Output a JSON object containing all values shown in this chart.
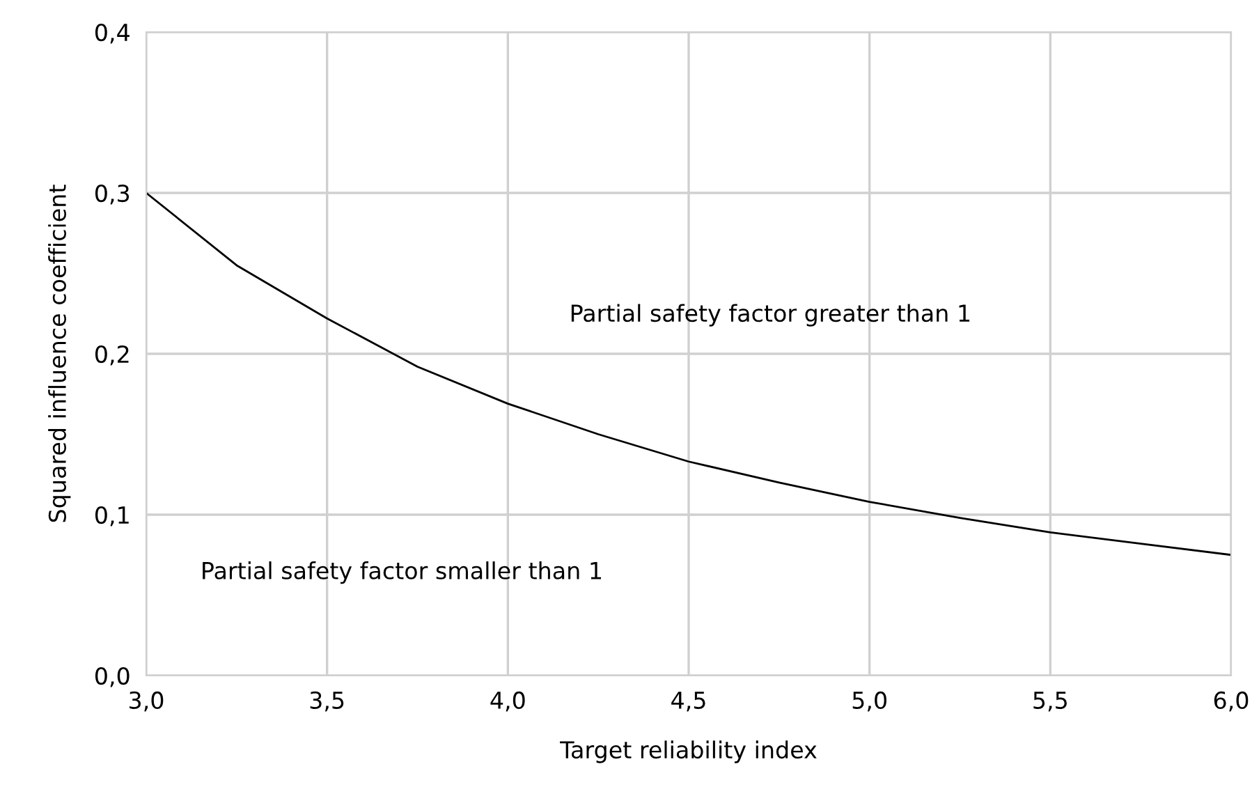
{
  "chart_data": {
    "type": "line",
    "xlabel": "Target reliability index",
    "ylabel": "Squared influence coefficient",
    "x": [
      3.0,
      3.25,
      3.5,
      3.75,
      4.0,
      4.25,
      4.5,
      4.75,
      5.0,
      5.25,
      5.5,
      5.75,
      6.0
    ],
    "series": [
      {
        "color": "#000000",
        "values": [
          0.3,
          0.255,
          0.222,
          0.192,
          0.169,
          0.15,
          0.133,
          0.12,
          0.108,
          0.098,
          0.089,
          0.082,
          0.075
        ]
      }
    ],
    "xlim": [
      3.0,
      6.0
    ],
    "xticks": [
      {
        "value": 3.0,
        "label": "3,0"
      },
      {
        "value": 3.5,
        "label": "3,5"
      },
      {
        "value": 4.0,
        "label": "4,0"
      },
      {
        "value": 4.5,
        "label": "4,5"
      },
      {
        "value": 5.0,
        "label": "5,0"
      },
      {
        "value": 5.5,
        "label": "5,5"
      },
      {
        "value": 6.0,
        "label": "6,0"
      }
    ],
    "ylim": [
      0.0,
      0.4
    ],
    "yticks": [
      {
        "value": 0.0,
        "label": "0,0"
      },
      {
        "value": 0.1,
        "label": "0,1"
      },
      {
        "value": 0.2,
        "label": "0,2"
      },
      {
        "value": 0.3,
        "label": "0,3"
      },
      {
        "value": 0.4,
        "label": "0,4"
      }
    ],
    "grid": true,
    "marker": "none",
    "line_style": "solid",
    "annotations": [
      "Partial safety factor greater than 1",
      "Partial safety factor smaller than 1"
    ]
  }
}
